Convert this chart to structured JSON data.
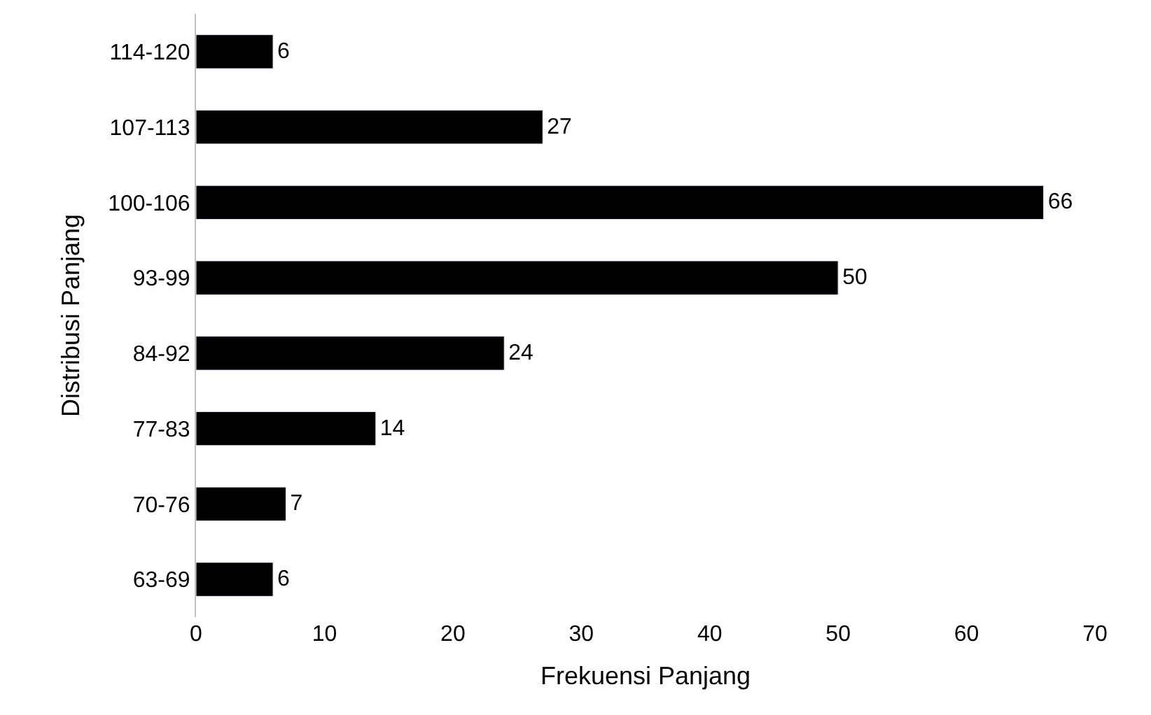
{
  "chart_data": {
    "type": "bar",
    "orientation": "horizontal",
    "xlabel": "Frekuensi Panjang",
    "ylabel": "Distribusi Panjang",
    "categories": [
      "114-120",
      "107-113",
      "100-106",
      "93-99",
      "84-92",
      "77-83",
      "70-76",
      "63-69"
    ],
    "values": [
      6,
      27,
      66,
      50,
      24,
      14,
      7,
      6
    ],
    "color": "#000000",
    "xlim": [
      0,
      70
    ],
    "xticks": [
      0,
      10,
      20,
      30,
      40,
      50,
      60,
      70
    ],
    "data_labels": true
  }
}
